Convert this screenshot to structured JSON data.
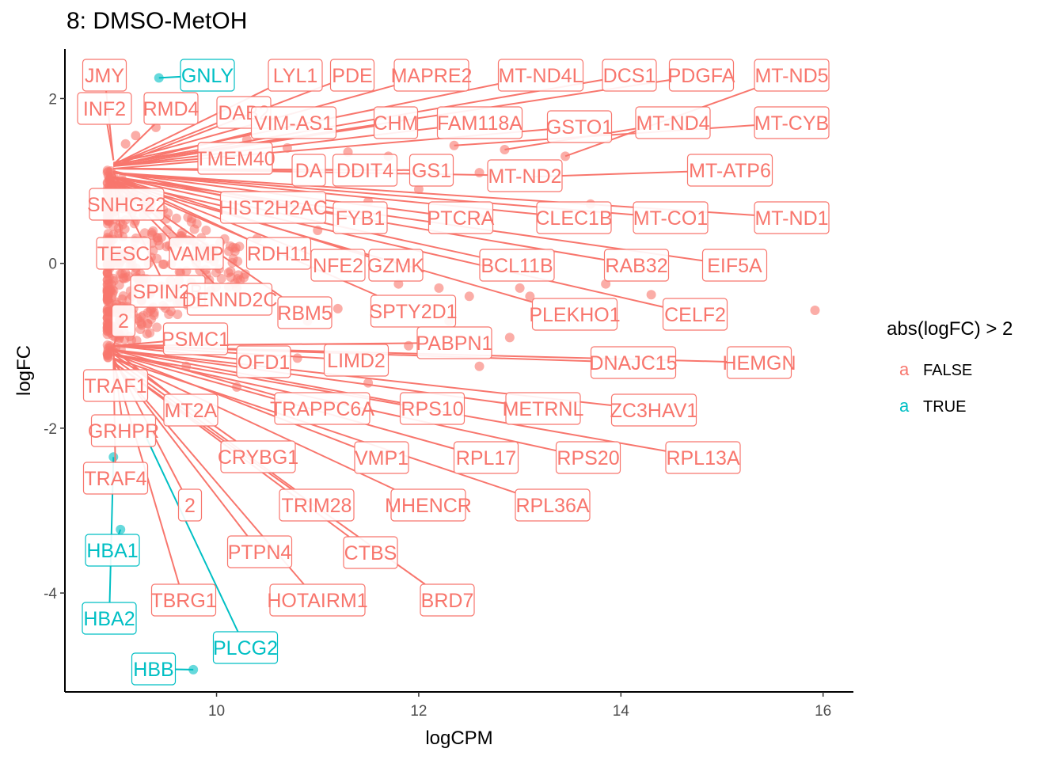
{
  "chart_data": {
    "type": "scatter",
    "title": "8: DMSO-MetOH",
    "xlabel": "logCPM",
    "ylabel": "logFC",
    "xlim": [
      8.5,
      16.3
    ],
    "ylim": [
      -5.2,
      2.6
    ],
    "xticks": [
      10,
      12,
      14,
      16
    ],
    "yticks": [
      -4,
      -2,
      0,
      2
    ],
    "grid": false,
    "legend": {
      "title": "abs(logFC) > 2",
      "position": "right",
      "key_glyph": "a",
      "entries": [
        {
          "label": "FALSE",
          "color": "#F8766D"
        },
        {
          "label": "TRUE",
          "color": "#00BFC4"
        }
      ]
    },
    "colors": {
      "FALSE": "#F8766D",
      "TRUE": "#00BFC4"
    },
    "labels": [
      {
        "text": "JMY",
        "x": 8.98,
        "y": 1.25,
        "sig": false
      },
      {
        "text": "GNLY",
        "x": 9.43,
        "y": 2.25,
        "sig": true
      },
      {
        "text": "LYL1",
        "x": 8.98,
        "y": 1.2,
        "sig": false
      },
      {
        "text": "PDE",
        "x": 8.98,
        "y": 1.18,
        "sig": false
      },
      {
        "text": "MAPRE2",
        "x": 8.98,
        "y": 1.22,
        "sig": false
      },
      {
        "text": "MT-ND4L",
        "x": 8.98,
        "y": 1.22,
        "sig": false
      },
      {
        "text": "DCS1",
        "x": 8.98,
        "y": 1.2,
        "sig": false
      },
      {
        "text": "PDGFA",
        "x": 8.98,
        "y": 1.2,
        "sig": false
      },
      {
        "text": "MT-ND5",
        "x": 13.45,
        "y": 1.3,
        "sig": false
      },
      {
        "text": "INF2",
        "x": 8.98,
        "y": 1.25,
        "sig": false
      },
      {
        "text": "RMD4",
        "x": 8.98,
        "y": 1.2,
        "sig": false
      },
      {
        "text": "DAB2",
        "x": 8.98,
        "y": 1.2,
        "sig": false
      },
      {
        "text": "VIM-AS1",
        "x": 8.98,
        "y": 1.18,
        "sig": false
      },
      {
        "text": "CHM",
        "x": 8.98,
        "y": 1.18,
        "sig": false
      },
      {
        "text": "FAM118A",
        "x": 8.98,
        "y": 1.18,
        "sig": false
      },
      {
        "text": "GSTO1",
        "x": 8.98,
        "y": 1.18,
        "sig": false
      },
      {
        "text": "MT-ND4",
        "x": 12.85,
        "y": 1.38,
        "sig": false
      },
      {
        "text": "MT-CYB",
        "x": 12.35,
        "y": 1.43,
        "sig": false
      },
      {
        "text": "TMEM40",
        "x": 8.98,
        "y": 1.15,
        "sig": false
      },
      {
        "text": "DA",
        "x": 8.98,
        "y": 1.15,
        "sig": false
      },
      {
        "text": "DDIT4",
        "x": 8.98,
        "y": 1.15,
        "sig": false
      },
      {
        "text": "GS1",
        "x": 8.98,
        "y": 1.15,
        "sig": false
      },
      {
        "text": "MT-ND2",
        "x": 8.98,
        "y": 1.15,
        "sig": false
      },
      {
        "text": "MT-ATP6",
        "x": 13.1,
        "y": 1.05,
        "sig": false
      },
      {
        "text": "SNHG22",
        "x": 8.98,
        "y": 1.12,
        "sig": false
      },
      {
        "text": "HIST2H2AC",
        "x": 8.98,
        "y": 1.12,
        "sig": false
      },
      {
        "text": "FYB1",
        "x": 8.98,
        "y": 1.1,
        "sig": false
      },
      {
        "text": "PTCRA",
        "x": 8.98,
        "y": 1.1,
        "sig": false
      },
      {
        "text": "CLEC1B",
        "x": 8.98,
        "y": 1.1,
        "sig": false
      },
      {
        "text": "MT-CO1",
        "x": 8.98,
        "y": 1.1,
        "sig": false
      },
      {
        "text": "MT-ND1",
        "x": 8.98,
        "y": 1.1,
        "sig": false
      },
      {
        "text": "TESC",
        "x": 8.98,
        "y": 1.05,
        "sig": false
      },
      {
        "text": "VAMP",
        "x": 8.98,
        "y": 1.05,
        "sig": false
      },
      {
        "text": "RDH11",
        "x": 8.98,
        "y": 1.05,
        "sig": false
      },
      {
        "text": "NFE2",
        "x": 8.98,
        "y": 1.05,
        "sig": false
      },
      {
        "text": "GZMK",
        "x": 8.98,
        "y": 1.05,
        "sig": false
      },
      {
        "text": "BCL11B",
        "x": 8.98,
        "y": 1.05,
        "sig": false
      },
      {
        "text": "RAB32",
        "x": 8.98,
        "y": 1.05,
        "sig": false
      },
      {
        "text": "EIF5A",
        "x": 8.98,
        "y": 1.05,
        "sig": false
      },
      {
        "text": "SPIN2B",
        "x": 8.98,
        "y": 1.0,
        "sig": false
      },
      {
        "text": "DENND2C",
        "x": 8.98,
        "y": 1.0,
        "sig": false
      },
      {
        "text": "RBM5",
        "x": 8.98,
        "y": 1.0,
        "sig": false
      },
      {
        "text": "SPTY2D1",
        "x": 8.98,
        "y": 1.0,
        "sig": false
      },
      {
        "text": "PLEKHO1",
        "x": 8.98,
        "y": 1.0,
        "sig": false
      },
      {
        "text": "CELF2",
        "x": 8.98,
        "y": 1.0,
        "sig": false
      },
      {
        "text": "2",
        "x": 8.98,
        "y": -1.0,
        "sig": false
      },
      {
        "text": "PSMC1",
        "x": 8.98,
        "y": -1.0,
        "sig": false
      },
      {
        "text": "OFD1",
        "x": 8.98,
        "y": -1.0,
        "sig": false
      },
      {
        "text": "LIMD2",
        "x": 8.98,
        "y": -1.0,
        "sig": false
      },
      {
        "text": "PABPN1",
        "x": 8.98,
        "y": -1.0,
        "sig": false
      },
      {
        "text": "DNAJC15",
        "x": 8.98,
        "y": -1.0,
        "sig": false
      },
      {
        "text": "HEMGN",
        "x": 8.98,
        "y": -1.0,
        "sig": false
      },
      {
        "text": "TRAF1",
        "x": 8.98,
        "y": -1.05,
        "sig": false
      },
      {
        "text": "MT2A",
        "x": 8.98,
        "y": -1.05,
        "sig": false
      },
      {
        "text": "TRAPPC6A",
        "x": 8.98,
        "y": -1.05,
        "sig": false
      },
      {
        "text": "RPS10",
        "x": 8.98,
        "y": -1.05,
        "sig": false
      },
      {
        "text": "METRNL",
        "x": 8.98,
        "y": -1.05,
        "sig": false
      },
      {
        "text": "ZC3HAV1",
        "x": 8.98,
        "y": -1.05,
        "sig": false
      },
      {
        "text": "GRHPR",
        "x": 8.98,
        "y": -1.1,
        "sig": false
      },
      {
        "text": "CRYBG1",
        "x": 8.98,
        "y": -1.1,
        "sig": false
      },
      {
        "text": "VMP1",
        "x": 8.98,
        "y": -1.1,
        "sig": false
      },
      {
        "text": "RPL17",
        "x": 8.98,
        "y": -1.1,
        "sig": false
      },
      {
        "text": "RPS20",
        "x": 8.98,
        "y": -1.1,
        "sig": false
      },
      {
        "text": "RPL13A",
        "x": 8.98,
        "y": -1.1,
        "sig": false
      },
      {
        "text": "TRAF4",
        "x": 8.98,
        "y": -1.15,
        "sig": false
      },
      {
        "text": "2",
        "x": 8.98,
        "y": -1.15,
        "sig": false
      },
      {
        "text": "TRIM28",
        "x": 8.98,
        "y": -1.15,
        "sig": false
      },
      {
        "text": "MHENCR",
        "x": 8.98,
        "y": -1.15,
        "sig": false
      },
      {
        "text": "RPL36A",
        "x": 8.98,
        "y": -1.15,
        "sig": false
      },
      {
        "text": "HBA1",
        "x": 9.05,
        "y": -3.23,
        "sig": true
      },
      {
        "text": "PTPN4",
        "x": 8.98,
        "y": -1.2,
        "sig": false
      },
      {
        "text": "CTBS",
        "x": 8.98,
        "y": -1.2,
        "sig": false
      },
      {
        "text": "TBRG1",
        "x": 8.98,
        "y": -1.2,
        "sig": false
      },
      {
        "text": "HOTAIRM1",
        "x": 8.98,
        "y": -1.2,
        "sig": false
      },
      {
        "text": "BRD7",
        "x": 8.98,
        "y": -1.2,
        "sig": false
      },
      {
        "text": "HBA2",
        "x": 8.98,
        "y": -2.35,
        "sig": true
      },
      {
        "text": "PLCG2",
        "x": 9.3,
        "y": -2.1,
        "sig": true
      },
      {
        "text": "HBB",
        "x": 9.77,
        "y": -4.93,
        "sig": true
      }
    ],
    "points": [
      {
        "x": 9.43,
        "y": 2.25,
        "sig": true
      },
      {
        "x": 9.77,
        "y": -4.93,
        "sig": true
      },
      {
        "x": 9.05,
        "y": -3.23,
        "sig": true
      },
      {
        "x": 8.98,
        "y": -2.35,
        "sig": true
      },
      {
        "x": 15.92,
        "y": -0.57,
        "sig": false
      },
      {
        "x": 14.3,
        "y": -0.38,
        "sig": false
      },
      {
        "x": 13.85,
        "y": -0.25,
        "sig": false
      },
      {
        "x": 13.45,
        "y": 1.3,
        "sig": false
      },
      {
        "x": 12.85,
        "y": 1.38,
        "sig": false
      },
      {
        "x": 12.35,
        "y": 1.43,
        "sig": false
      },
      {
        "x": 13.7,
        "y": 0.72,
        "sig": false
      },
      {
        "x": 12.6,
        "y": 0.55,
        "sig": false
      },
      {
        "x": 13.1,
        "y": -0.4,
        "sig": false
      },
      {
        "x": 12.9,
        "y": -0.9,
        "sig": false
      },
      {
        "x": 12.2,
        "y": -0.3,
        "sig": false
      },
      {
        "x": 11.8,
        "y": -0.25,
        "sig": false
      },
      {
        "x": 11.2,
        "y": -0.55,
        "sig": false
      },
      {
        "x": 11.5,
        "y": -1.45,
        "sig": false
      },
      {
        "x": 10.8,
        "y": -1.15,
        "sig": false
      },
      {
        "x": 10.2,
        "y": -1.5,
        "sig": false
      },
      {
        "x": 9.7,
        "y": -1.25,
        "sig": false
      },
      {
        "x": 12.6,
        "y": -1.25,
        "sig": false
      },
      {
        "x": 9.2,
        "y": 1.55,
        "sig": false
      },
      {
        "x": 9.4,
        "y": 1.65,
        "sig": false
      },
      {
        "x": 9.1,
        "y": 1.45,
        "sig": false
      },
      {
        "x": 10.3,
        "y": 1.5,
        "sig": false
      },
      {
        "x": 10.7,
        "y": 1.4,
        "sig": false
      },
      {
        "x": 11.3,
        "y": 1.35,
        "sig": false
      },
      {
        "x": 11.7,
        "y": 1.3,
        "sig": false
      },
      {
        "x": 12.6,
        "y": 1.1,
        "sig": false
      },
      {
        "x": 11.0,
        "y": 0.4,
        "sig": false
      },
      {
        "x": 10.4,
        "y": 0.3,
        "sig": false
      },
      {
        "x": 10.9,
        "y": -0.7,
        "sig": false
      },
      {
        "x": 10.2,
        "y": -0.3,
        "sig": false
      },
      {
        "x": 9.8,
        "y": 0.2,
        "sig": false
      },
      {
        "x": 13.0,
        "y": -0.3,
        "sig": false
      },
      {
        "x": 12.5,
        "y": -0.4,
        "sig": false
      },
      {
        "x": 12.0,
        "y": 0.9,
        "sig": false
      },
      {
        "x": 11.5,
        "y": 0.75,
        "sig": false
      },
      {
        "x": 12.3,
        "y": -0.7,
        "sig": false
      },
      {
        "x": 11.9,
        "y": -1.0,
        "sig": false
      }
    ]
  }
}
